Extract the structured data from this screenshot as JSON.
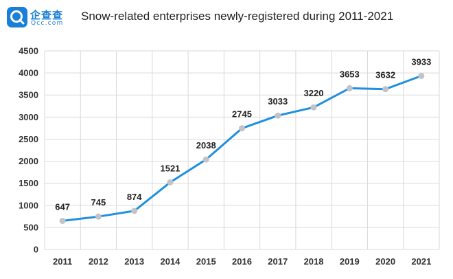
{
  "header": {
    "logo_cn": "企查查",
    "logo_en": "Qcc.com",
    "logo_icon": "qcc-logo-icon"
  },
  "chart_data": {
    "type": "line",
    "title": "Snow-related enterprises newly-registered during 2011-2021",
    "xlabel": "",
    "ylabel": "",
    "categories": [
      "2011",
      "2012",
      "2013",
      "2014",
      "2015",
      "2016",
      "2017",
      "2018",
      "2019",
      "2020",
      "2021"
    ],
    "series": [
      {
        "values": [
          647,
          745,
          874,
          1521,
          2038,
          2745,
          3033,
          3220,
          3653,
          3632,
          3933
        ]
      }
    ],
    "ylim": [
      0,
      4500
    ],
    "yticks": [
      "0",
      "500",
      "1000",
      "1500",
      "2000",
      "2500",
      "3000",
      "3500",
      "4000",
      "4500"
    ],
    "grid": true,
    "legend": "none",
    "colors": {
      "line": "#1f8fde",
      "marker": "#c0c4c8",
      "grid": "#d9d9d9"
    }
  }
}
